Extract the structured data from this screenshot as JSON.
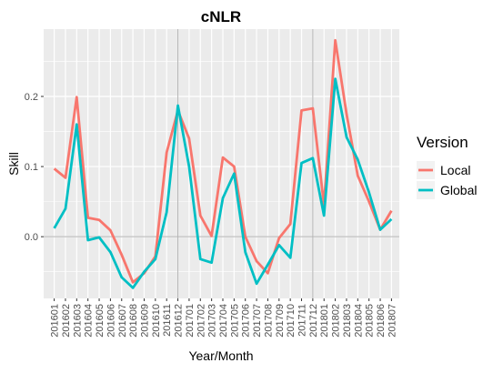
{
  "chart_data": {
    "type": "line",
    "title": "cNLR",
    "xlabel": "Year/Month",
    "ylabel": "Skill",
    "categories": [
      "201601",
      "201602",
      "201603",
      "201604",
      "201605",
      "201606",
      "201607",
      "201608",
      "201609",
      "201610",
      "201611",
      "201612",
      "201701",
      "201702",
      "201703",
      "201704",
      "201705",
      "201706",
      "201707",
      "201708",
      "201709",
      "201710",
      "201711",
      "201712",
      "201801",
      "201802",
      "201803",
      "201804",
      "201805",
      "201806",
      "201807"
    ],
    "series": [
      {
        "name": "Local",
        "color": "#F8766D",
        "values": [
          0.097,
          0.084,
          0.199,
          0.027,
          0.024,
          0.009,
          -0.026,
          -0.065,
          -0.052,
          -0.028,
          0.12,
          0.18,
          0.14,
          0.03,
          0.001,
          0.113,
          0.1,
          0.0,
          -0.035,
          -0.052,
          -0.002,
          0.018,
          0.18,
          0.183,
          0.045,
          0.28,
          0.175,
          0.087,
          0.05,
          0.01,
          0.037
        ]
      },
      {
        "name": "Global",
        "color": "#00BFC4",
        "values": [
          0.012,
          0.04,
          0.16,
          -0.005,
          -0.001,
          -0.022,
          -0.058,
          -0.073,
          -0.05,
          -0.032,
          0.035,
          0.187,
          0.1,
          -0.032,
          -0.037,
          0.055,
          0.09,
          -0.022,
          -0.067,
          -0.04,
          -0.012,
          -0.03,
          0.105,
          0.112,
          0.03,
          0.225,
          0.142,
          0.11,
          0.063,
          0.01,
          0.025
        ]
      }
    ],
    "yticks": [
      0.0,
      0.1,
      0.2
    ],
    "ytick_labels": [
      "0.0",
      "0.1",
      "0.2"
    ],
    "ylim": [
      -0.088,
      0.296
    ],
    "vlines": [
      "201612",
      "201712"
    ],
    "grid": true,
    "legend": {
      "title": "Version",
      "position": "right",
      "entries": [
        "Local",
        "Global"
      ]
    },
    "panel_background": "#EBEBEB",
    "grid_color": "#FFFFFF"
  }
}
